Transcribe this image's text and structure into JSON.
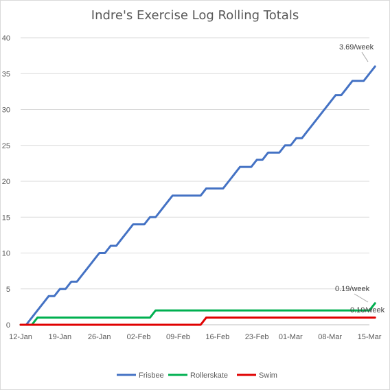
{
  "chart_data": {
    "type": "line",
    "title": "Indre's Exercise Log Rolling Totals",
    "xlabel": "",
    "ylabel": "",
    "x_type": "date",
    "x_range": [
      "2026-01-12",
      "2026-03-15"
    ],
    "ylim": [
      0,
      40
    ],
    "y_ticks": [
      "0",
      "5",
      "10",
      "15",
      "20",
      "25",
      "30",
      "35",
      "40"
    ],
    "x_ticks": [
      {
        "date": "2026-01-12",
        "label": "12-Jan"
      },
      {
        "date": "2026-01-19",
        "label": "19-Jan"
      },
      {
        "date": "2026-01-26",
        "label": "26-Jan"
      },
      {
        "date": "2026-02-02",
        "label": "02-Feb"
      },
      {
        "date": "2026-02-09",
        "label": "09-Feb"
      },
      {
        "date": "2026-02-16",
        "label": "16-Feb"
      },
      {
        "date": "2026-02-23",
        "label": "23-Feb"
      },
      {
        "date": "2026-03-01",
        "label": "01-Mar"
      },
      {
        "date": "2026-03-08",
        "label": "08-Mar"
      },
      {
        "date": "2026-03-15",
        "label": "15-Mar"
      }
    ],
    "grid": true,
    "legend_position": "bottom",
    "series": [
      {
        "name": "Frisbee",
        "color": "#4472C4",
        "points": [
          [
            "2026-01-12",
            0
          ],
          [
            "2026-01-13",
            0
          ],
          [
            "2026-01-14",
            1
          ],
          [
            "2026-01-15",
            2
          ],
          [
            "2026-01-16",
            3
          ],
          [
            "2026-01-17",
            4
          ],
          [
            "2026-01-18",
            4
          ],
          [
            "2026-01-19",
            5
          ],
          [
            "2026-01-20",
            5
          ],
          [
            "2026-01-21",
            6
          ],
          [
            "2026-01-22",
            6
          ],
          [
            "2026-01-23",
            7
          ],
          [
            "2026-01-24",
            8
          ],
          [
            "2026-01-25",
            9
          ],
          [
            "2026-01-26",
            10
          ],
          [
            "2026-01-27",
            10
          ],
          [
            "2026-01-28",
            11
          ],
          [
            "2026-01-29",
            11
          ],
          [
            "2026-01-30",
            12
          ],
          [
            "2026-01-31",
            13
          ],
          [
            "2026-02-01",
            14
          ],
          [
            "2026-02-02",
            14
          ],
          [
            "2026-02-03",
            14
          ],
          [
            "2026-02-04",
            15
          ],
          [
            "2026-02-05",
            15
          ],
          [
            "2026-02-06",
            16
          ],
          [
            "2026-02-07",
            17
          ],
          [
            "2026-02-08",
            18
          ],
          [
            "2026-02-09",
            18
          ],
          [
            "2026-02-10",
            18
          ],
          [
            "2026-02-11",
            18
          ],
          [
            "2026-02-12",
            18
          ],
          [
            "2026-02-13",
            18
          ],
          [
            "2026-02-14",
            19
          ],
          [
            "2026-02-15",
            19
          ],
          [
            "2026-02-16",
            19
          ],
          [
            "2026-02-17",
            19
          ],
          [
            "2026-02-18",
            20
          ],
          [
            "2026-02-19",
            21
          ],
          [
            "2026-02-20",
            22
          ],
          [
            "2026-02-21",
            22
          ],
          [
            "2026-02-22",
            22
          ],
          [
            "2026-02-23",
            23
          ],
          [
            "2026-02-24",
            23
          ],
          [
            "2026-02-25",
            24
          ],
          [
            "2026-02-26",
            24
          ],
          [
            "2026-02-27",
            24
          ],
          [
            "2026-02-28",
            25
          ],
          [
            "2026-03-01",
            25
          ],
          [
            "2026-03-02",
            26
          ],
          [
            "2026-03-03",
            26
          ],
          [
            "2026-03-04",
            27
          ],
          [
            "2026-03-05",
            28
          ],
          [
            "2026-03-06",
            29
          ],
          [
            "2026-03-07",
            30
          ],
          [
            "2026-03-08",
            31
          ],
          [
            "2026-03-09",
            32
          ],
          [
            "2026-03-10",
            32
          ],
          [
            "2026-03-11",
            33
          ],
          [
            "2026-03-12",
            34
          ],
          [
            "2026-03-13",
            34
          ],
          [
            "2026-03-14",
            34
          ],
          [
            "2026-03-15",
            35
          ],
          [
            "2026-03-16",
            36
          ]
        ],
        "annotation": "3.69/week"
      },
      {
        "name": "Rollerskate",
        "color": "#00B050",
        "points": [
          [
            "2026-01-12",
            0
          ],
          [
            "2026-01-14",
            0
          ],
          [
            "2026-01-15",
            1
          ],
          [
            "2026-02-04",
            1
          ],
          [
            "2026-02-05",
            2
          ],
          [
            "2026-03-15",
            2
          ],
          [
            "2026-03-16",
            3
          ]
        ],
        "annotation": "0.19/week"
      },
      {
        "name": "Swim",
        "color": "#E00000",
        "points": [
          [
            "2026-01-12",
            0
          ],
          [
            "2026-02-13",
            0
          ],
          [
            "2026-02-14",
            1
          ],
          [
            "2026-03-16",
            1
          ]
        ],
        "annotation": "0.10/week"
      }
    ]
  }
}
